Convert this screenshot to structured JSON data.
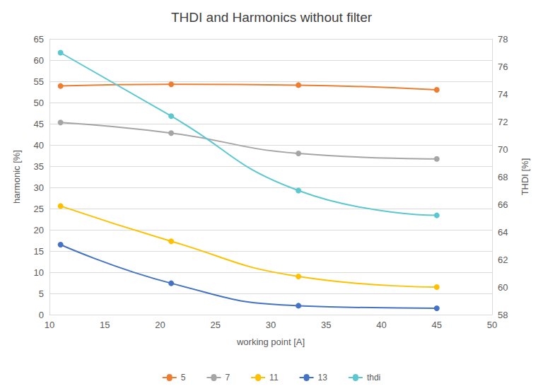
{
  "chart_data": {
    "type": "line",
    "title": "THDI and Harmonics without filter",
    "x_label": "working point [A]",
    "y_label": "harmonic [%]",
    "y2_label": "THDI [%]",
    "x": [
      11,
      21,
      32.5,
      45
    ],
    "xlim": [
      10,
      50
    ],
    "xticks": [
      10,
      15,
      20,
      25,
      30,
      35,
      40,
      45,
      50
    ],
    "ylim": [
      0,
      65
    ],
    "yticks": [
      0,
      5,
      10,
      15,
      20,
      25,
      30,
      35,
      40,
      45,
      50,
      55,
      60,
      65
    ],
    "y2lim": [
      58,
      78
    ],
    "y2ticks": [
      58,
      60,
      62,
      64,
      66,
      68,
      70,
      72,
      74,
      76,
      78
    ],
    "grid": true,
    "legend": "bottom",
    "marker": "circle",
    "line_style": "smooth",
    "series": [
      {
        "name": "5",
        "color": "#ed7d31",
        "values": [
          53.9,
          54.3,
          54.1,
          53.0
        ]
      },
      {
        "name": "7",
        "color": "#a5a5a5",
        "values": [
          45.3,
          42.8,
          38.0,
          36.7
        ]
      },
      {
        "name": "11",
        "color": "#ffc000",
        "values": [
          25.6,
          17.3,
          9.0,
          6.5
        ]
      },
      {
        "name": "13",
        "color": "#4472c4",
        "values": [
          16.5,
          7.4,
          2.1,
          1.5
        ]
      },
      {
        "name": "thdi",
        "color": "#5bc8d0",
        "values": [
          77.0,
          72.4,
          67.0,
          65.2
        ],
        "axis": "y2"
      }
    ]
  }
}
